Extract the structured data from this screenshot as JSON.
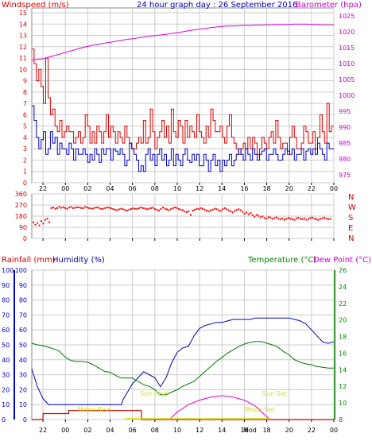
{
  "header": {
    "left_label": "Windspeed (m/s)",
    "title": "24 hour graph day : 26 September 2016",
    "right_label": "Barometer (hpa)"
  },
  "colors": {
    "wind": "#dd0000",
    "gust": "#0000cc",
    "barometer": "#dd00dd",
    "direction": "#ff0000",
    "rain": "#cc0000",
    "humidity": "#0000bb",
    "temperature": "#007700",
    "daylight": "#dddd00",
    "moon": "#dd00dd",
    "grid": "#cccccc",
    "axis_wind": "#dd0000",
    "axis_baro": "#cc00cc",
    "axis_green": "#008800"
  },
  "chart_data": [
    {
      "type": "line",
      "name": "wind-barometer",
      "x_tick_labels": [
        "22",
        "00",
        "02",
        "04",
        "06",
        "08",
        "10",
        "12",
        "14",
        "16",
        "18",
        "20",
        "22",
        "00"
      ],
      "y_left_ticks": [
        "0",
        "1",
        "2",
        "3",
        "4",
        "5",
        "6",
        "7",
        "8",
        "9",
        "10",
        "11",
        "12",
        "13",
        "14",
        "15"
      ],
      "y_right_ticks": [
        "975",
        "980",
        "985",
        "990",
        "995",
        "1000",
        "1005",
        "1010",
        "1015",
        "1020",
        "1025"
      ],
      "ylim_left": [
        0,
        15
      ],
      "ylim_right": [
        975,
        1025
      ],
      "series": [
        {
          "key": "wind",
          "axis": "left",
          "step": true,
          "values": [
            11.8,
            10.5,
            9.0,
            10.0,
            8.5,
            7.0,
            11.0,
            7.5,
            6.0,
            6.5,
            5.0,
            4.5,
            5.5,
            4.0,
            4.5,
            5.0,
            4.5,
            4.5,
            3.5,
            4.0,
            4.5,
            3.5,
            4.0,
            6.0,
            5.0,
            3.5,
            4.5,
            3.5,
            5.0,
            4.5,
            3.5,
            4.5,
            6.0,
            4.0,
            5.0,
            4.5,
            3.5,
            4.5,
            4.0,
            3.5,
            5.0,
            4.0,
            3.5,
            3.0,
            3.0,
            3.5,
            4.0,
            3.5,
            5.5,
            3.5,
            4.0,
            6.5,
            4.5,
            3.0,
            4.0,
            4.5,
            5.5,
            4.0,
            5.0,
            3.5,
            6.5,
            4.5,
            4.0,
            5.5,
            5.0,
            3.5,
            5.5,
            4.0,
            5.0,
            4.5,
            4.0,
            6.0,
            4.5,
            4.0,
            3.5,
            5.0,
            4.0,
            6.5,
            5.5,
            4.5,
            4.5,
            5.0,
            4.0,
            3.5,
            5.0,
            6.0,
            4.0,
            3.5,
            3.0,
            2.5,
            3.0,
            3.5,
            3.0,
            4.0,
            3.0,
            4.0,
            3.5,
            2.5,
            3.0,
            4.0,
            3.5,
            3.0,
            4.0,
            4.5,
            3.5,
            5.5,
            4.0,
            3.0,
            3.5,
            3.5,
            2.5,
            4.0,
            5.0,
            4.0,
            3.0,
            3.0,
            3.5,
            5.0,
            4.5,
            3.5,
            3.5,
            4.5,
            3.0,
            4.0,
            6.0,
            4.5,
            3.5,
            7.0,
            4.5,
            5.0
          ]
        },
        {
          "key": "gust",
          "axis": "left",
          "step": true,
          "values": [
            6.8,
            5.5,
            4.0,
            3.0,
            3.8,
            4.5,
            2.5,
            3.0,
            4.5,
            3.5,
            4.0,
            2.5,
            3.5,
            3.0,
            3.0,
            2.5,
            3.5,
            3.0,
            2.0,
            3.0,
            2.5,
            2.5,
            3.0,
            2.5,
            1.8,
            2.5,
            2.0,
            3.0,
            2.5,
            1.8,
            3.0,
            2.5,
            3.0,
            3.0,
            2.0,
            3.0,
            2.8,
            2.5,
            3.0,
            2.5,
            1.5,
            2.0,
            3.5,
            3.0,
            2.5,
            2.0,
            1.0,
            1.5,
            1.0,
            2.5,
            3.0,
            2.0,
            2.5,
            1.5,
            2.5,
            3.0,
            2.0,
            2.5,
            1.5,
            2.0,
            3.0,
            1.5,
            2.5,
            2.0,
            1.5,
            2.5,
            3.0,
            2.0,
            1.8,
            2.5,
            2.0,
            2.5,
            1.5,
            1.5,
            2.5,
            2.0,
            1.0,
            2.0,
            2.5,
            1.5,
            2.0,
            1.0,
            2.0,
            1.5,
            2.0,
            2.5,
            1.5,
            2.0,
            2.5,
            3.0,
            2.5,
            2.0,
            3.0,
            2.5,
            2.0,
            3.0,
            2.5,
            2.0,
            2.5,
            2.8,
            3.0,
            2.0,
            2.5,
            2.5,
            3.0,
            2.5,
            2.0,
            2.0,
            2.5,
            3.0,
            2.8,
            2.5,
            3.0,
            2.0,
            2.5,
            2.5,
            3.0,
            2.0,
            2.8,
            3.0,
            2.5,
            3.0,
            2.5,
            3.5,
            3.0,
            2.5,
            2.0,
            3.5,
            3.0,
            3.0
          ]
        },
        {
          "key": "barometer",
          "axis": "right",
          "step": false,
          "x": [
            0,
            0.2,
            0.5,
            1,
            1.5,
            2,
            2.5,
            3,
            3.5,
            4,
            4.5,
            5,
            5.5,
            6,
            6.5,
            7,
            7.5,
            8,
            8.5,
            9,
            9.5,
            10,
            10.5,
            11,
            11.5,
            12,
            12.5,
            13,
            13.5,
            14,
            14.5,
            15,
            15.5,
            16,
            16.5,
            17,
            17.5,
            18,
            18.5,
            19,
            19.5,
            20,
            20.5,
            21,
            21.5,
            22,
            22.5,
            23,
            23.5,
            24,
            24.5,
            25,
            25.5,
            26,
            26.5,
            27
          ],
          "values": [
            1011,
            1011.2,
            1011.3,
            1011.5,
            1012,
            1012.5,
            1013,
            1013.5,
            1014,
            1014.5,
            1015,
            1015.4,
            1015.8,
            1016.1,
            1016.4,
            1016.7,
            1017,
            1017.3,
            1017.6,
            1017.8,
            1018.1,
            1018.3,
            1018.6,
            1018.8,
            1019,
            1019.2,
            1019.5,
            1019.7,
            1020,
            1020.3,
            1020.6,
            1020.8,
            1021,
            1021.3,
            1021.5,
            1021.7,
            1021.8,
            1021.8,
            1021.9,
            1022,
            1022,
            1022.1,
            1022.1,
            1022.2,
            1022.2,
            1022.3,
            1022.3,
            1022.3,
            1022.4,
            1022.4,
            1022.4,
            1022.3,
            1022.3,
            1022.2,
            1022.2,
            1022.2
          ]
        }
      ]
    },
    {
      "type": "scatter",
      "name": "wind-direction",
      "y_left_ticks": [
        "0",
        "90",
        "180",
        "270",
        "360"
      ],
      "ylim": [
        0,
        360
      ],
      "compass_labels": [
        "N",
        "W",
        "S",
        "E",
        "N"
      ],
      "values": [
        130,
        110,
        125,
        105,
        140,
        120,
        150,
        160,
        130,
        245,
        250,
        240,
        245,
        255,
        248,
        252,
        245,
        240,
        250,
        255,
        245,
        248,
        252,
        250,
        246,
        244,
        255,
        250,
        245,
        240,
        242,
        248,
        250,
        246,
        238,
        240,
        245,
        250,
        248,
        243,
        238,
        232,
        228,
        235,
        240,
        236,
        230,
        225,
        232,
        238,
        243,
        240,
        238,
        244,
        250,
        245,
        242,
        236,
        240,
        245,
        248,
        238,
        232,
        225,
        238,
        250,
        240,
        235,
        228,
        236,
        244,
        250,
        246,
        238,
        232,
        228,
        218,
        212,
        220,
        190,
        225,
        232,
        240,
        236,
        245,
        240,
        232,
        225,
        218,
        226,
        232,
        240,
        236,
        228,
        222,
        235,
        245,
        236,
        228,
        218,
        210,
        222,
        230,
        236,
        228,
        215,
        200,
        210,
        195,
        205,
        188,
        175,
        190,
        182,
        170,
        178,
        165,
        160,
        172,
        168,
        158,
        165,
        170,
        160,
        155,
        162,
        150,
        158,
        165,
        160,
        155,
        150,
        162,
        168,
        158,
        155,
        162,
        150,
        158,
        165,
        168,
        160,
        155,
        150,
        158,
        162,
        168,
        160,
        155,
        158
      ]
    },
    {
      "type": "line",
      "name": "rain-humidity-temperature",
      "header_labels": {
        "rainfall": "Rainfall (mm)",
        "humidity": "Humidity (%)",
        "temperature": "Temperature (°C)",
        "dewpoint": "Dew Point (°C)"
      },
      "y_left_ticks": [
        "0",
        "10",
        "20",
        "30",
        "40",
        "50",
        "60",
        "70",
        "80",
        "90",
        "100"
      ],
      "y_right_ticks": [
        "8",
        "10",
        "12",
        "14",
        "16",
        "18",
        "20",
        "22",
        "24",
        "26"
      ],
      "ylim_left": [
        0,
        100
      ],
      "ylim_right": [
        8,
        26
      ],
      "annotations": {
        "sun_rise": "Sun Rise",
        "sun_set": "Sun Set",
        "moon_rise": "Moon Rise",
        "moon_set": "Moon Set",
        "mod": "Mod"
      },
      "series": [
        {
          "key": "humidity",
          "axis": "left",
          "x": [
            0,
            0.5,
            1,
            1.5,
            2,
            3,
            4,
            5,
            6,
            7,
            8,
            8.2,
            9,
            10,
            11,
            11.5,
            12,
            12.5,
            13,
            13.5,
            14,
            14.5,
            15,
            15.5,
            16,
            16.5,
            17,
            17.5,
            18,
            18.5,
            19,
            19.5,
            20,
            20.5,
            21,
            21.5,
            22,
            22.5,
            23,
            23.5,
            24,
            24.5,
            25,
            25.5,
            26,
            26.5,
            27
          ],
          "values": [
            34,
            22,
            14,
            10,
            10,
            10,
            10,
            10,
            10,
            10,
            10,
            14,
            24,
            32,
            28,
            22,
            28,
            38,
            45,
            48,
            49,
            56,
            61,
            63,
            64,
            65,
            65,
            66,
            67,
            67,
            67,
            67,
            68,
            68,
            68,
            68,
            68,
            68,
            68,
            67,
            66,
            64,
            60,
            56,
            52,
            51,
            52
          ]
        },
        {
          "key": "temperature",
          "axis": "right",
          "x": [
            0,
            0.5,
            1,
            1.5,
            2,
            2.5,
            3,
            3.5,
            4,
            4.5,
            5,
            5.5,
            6,
            6.5,
            7,
            7.5,
            8,
            8.5,
            9,
            9.5,
            10,
            10.5,
            11,
            11.5,
            12,
            12.5,
            13,
            13.5,
            14,
            14.5,
            15,
            15.5,
            16,
            16.5,
            17,
            17.5,
            18,
            18.5,
            19,
            19.5,
            20,
            20.5,
            21,
            21.5,
            22,
            22.5,
            23,
            23.5,
            24,
            24.5,
            25,
            25.5,
            26,
            26.5,
            27
          ],
          "values": [
            17.2,
            17.0,
            16.9,
            16.7,
            16.5,
            16.2,
            15.5,
            15.1,
            15.0,
            15.0,
            14.9,
            14.6,
            14.2,
            13.8,
            13.7,
            13.3,
            13.0,
            13.0,
            13.0,
            12.6,
            12.2,
            12.0,
            11.6,
            11.0,
            11.0,
            11.3,
            11.6,
            12.0,
            12.3,
            12.6,
            13.2,
            13.8,
            14.4,
            15.0,
            15.5,
            16.0,
            16.4,
            16.8,
            17.1,
            17.3,
            17.4,
            17.4,
            17.2,
            17.0,
            16.7,
            16.2,
            15.8,
            15.2,
            14.9,
            14.7,
            14.6,
            14.4,
            14.3,
            14.2,
            14.2
          ]
        },
        {
          "key": "rain",
          "axis": "left",
          "step": true,
          "x": [
            0,
            0.8,
            1,
            3,
            3.3,
            9.6,
            9.8,
            27
          ],
          "values": [
            0,
            0,
            4,
            4,
            6,
            6,
            0,
            0
          ]
        },
        {
          "key": "daylight",
          "axis": "left",
          "x": [
            8.5,
            8.5,
            13.5,
            14,
            16,
            18,
            20,
            21,
            27
          ],
          "values": [
            0,
            0,
            0,
            0,
            0,
            0,
            0,
            0,
            0
          ]
        },
        {
          "key": "moon",
          "axis": "left",
          "x": [
            12.3,
            13,
            14,
            15,
            16,
            17,
            18,
            19,
            20,
            20.7,
            21.3
          ],
          "values": [
            0,
            5,
            10,
            13,
            15,
            16,
            15,
            13,
            9,
            4,
            0
          ]
        }
      ]
    }
  ]
}
